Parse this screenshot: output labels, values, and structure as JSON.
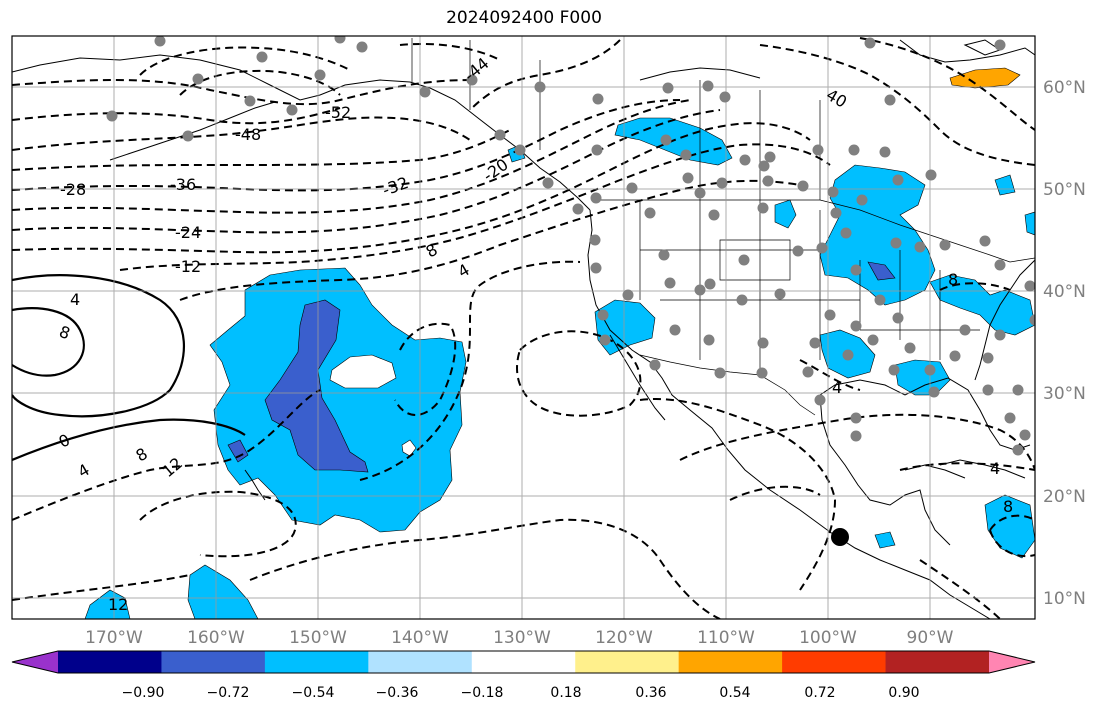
{
  "title": "2024092400 F000",
  "lat_labels": [
    "60°N",
    "50°N",
    "40°N",
    "30°N",
    "20°N",
    "10°N"
  ],
  "lon_labels": [
    "170°W",
    "160°W",
    "150°W",
    "140°W",
    "130°W",
    "120°W",
    "110°W",
    "100°W",
    "90°W"
  ],
  "contour_labels": [
    "-52",
    "-48",
    "-44",
    "-40",
    "-36",
    "-32",
    "-28",
    "-24",
    "-20",
    "-12",
    "-8",
    "-4",
    "0",
    "4",
    "8",
    "12",
    "40"
  ],
  "colorbar": {
    "ticks": [
      "−0.90",
      "−0.72",
      "−0.54",
      "−0.36",
      "−0.18",
      "0.18",
      "0.36",
      "0.54",
      "0.72",
      "0.90"
    ],
    "colors": [
      "#9932cc",
      "#00008b",
      "#3a5fcd",
      "#00bfff",
      "#b0e2ff",
      "#ffffff",
      "#fff08c",
      "#ffa500",
      "#ff3c00",
      "#b22222",
      "#ff85b2"
    ]
  },
  "colors": {
    "shade_light": "#00bfff",
    "shade_dark": "#3a5fcd",
    "shade_orange": "#ffa500",
    "station": "#808080",
    "grid": "#999999"
  }
}
